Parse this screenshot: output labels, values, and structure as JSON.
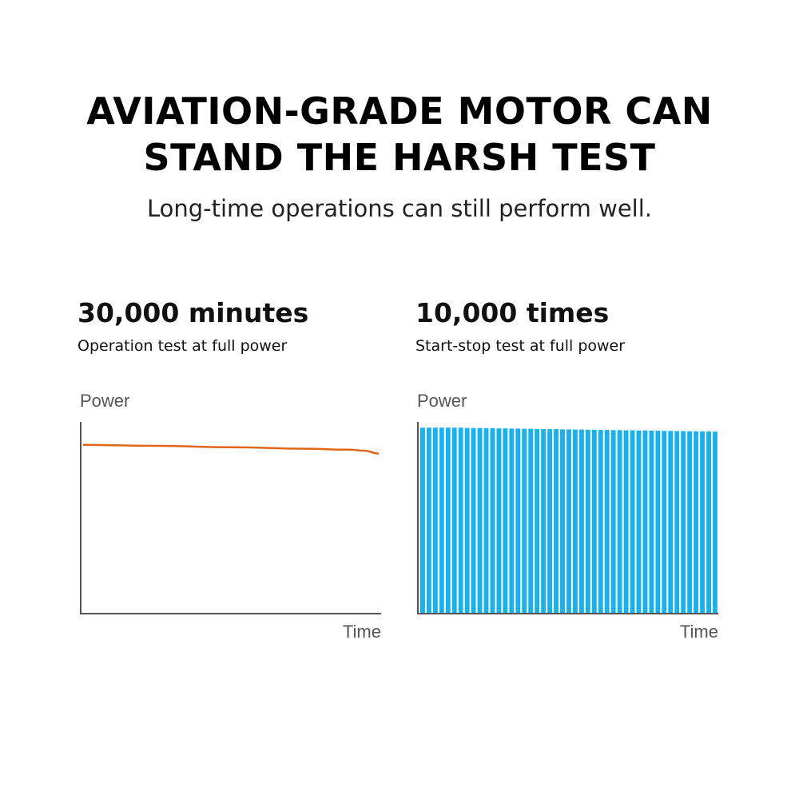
{
  "header": {
    "title_line1": "AVIATION-GRADE MOTOR CAN",
    "title_line2": "STAND THE HARSH TEST",
    "subtitle": "Long-time operations can still perform well."
  },
  "panels": [
    {
      "title": "30,000 minutes",
      "subtitle": "Operation test at full power"
    },
    {
      "title": "10,000 times",
      "subtitle": "Start-stop test at full power"
    }
  ],
  "colors": {
    "line": "#e0661a",
    "bars": "#1ab0ea",
    "axis": "#555555"
  },
  "chart_data": [
    {
      "type": "line",
      "ylabel": "Power",
      "xlabel": "Time",
      "grid": false,
      "xlim": [
        0,
        1
      ],
      "ylim": [
        0,
        1
      ],
      "series": [
        {
          "x": [
            0,
            0.25,
            0.5,
            0.75,
            0.9,
            0.95,
            1.0
          ],
          "y": [
            0.88,
            0.875,
            0.868,
            0.86,
            0.855,
            0.85,
            0.835
          ]
        }
      ]
    },
    {
      "type": "bar",
      "ylabel": "Power",
      "xlabel": "Time",
      "grid": false,
      "ylim": [
        0,
        1
      ],
      "values": [
        0.97,
        0.97,
        0.97,
        0.97,
        0.97,
        0.97,
        0.97,
        0.968,
        0.968,
        0.968,
        0.967,
        0.967,
        0.966,
        0.966,
        0.965,
        0.965,
        0.964,
        0.964,
        0.963,
        0.963,
        0.962,
        0.962,
        0.961,
        0.961,
        0.96,
        0.96,
        0.959,
        0.959,
        0.958,
        0.958,
        0.957,
        0.957,
        0.956,
        0.956,
        0.955,
        0.955,
        0.954,
        0.954,
        0.953,
        0.953,
        0.952,
        0.952,
        0.951,
        0.951,
        0.95,
        0.95,
        0.949
      ]
    }
  ]
}
